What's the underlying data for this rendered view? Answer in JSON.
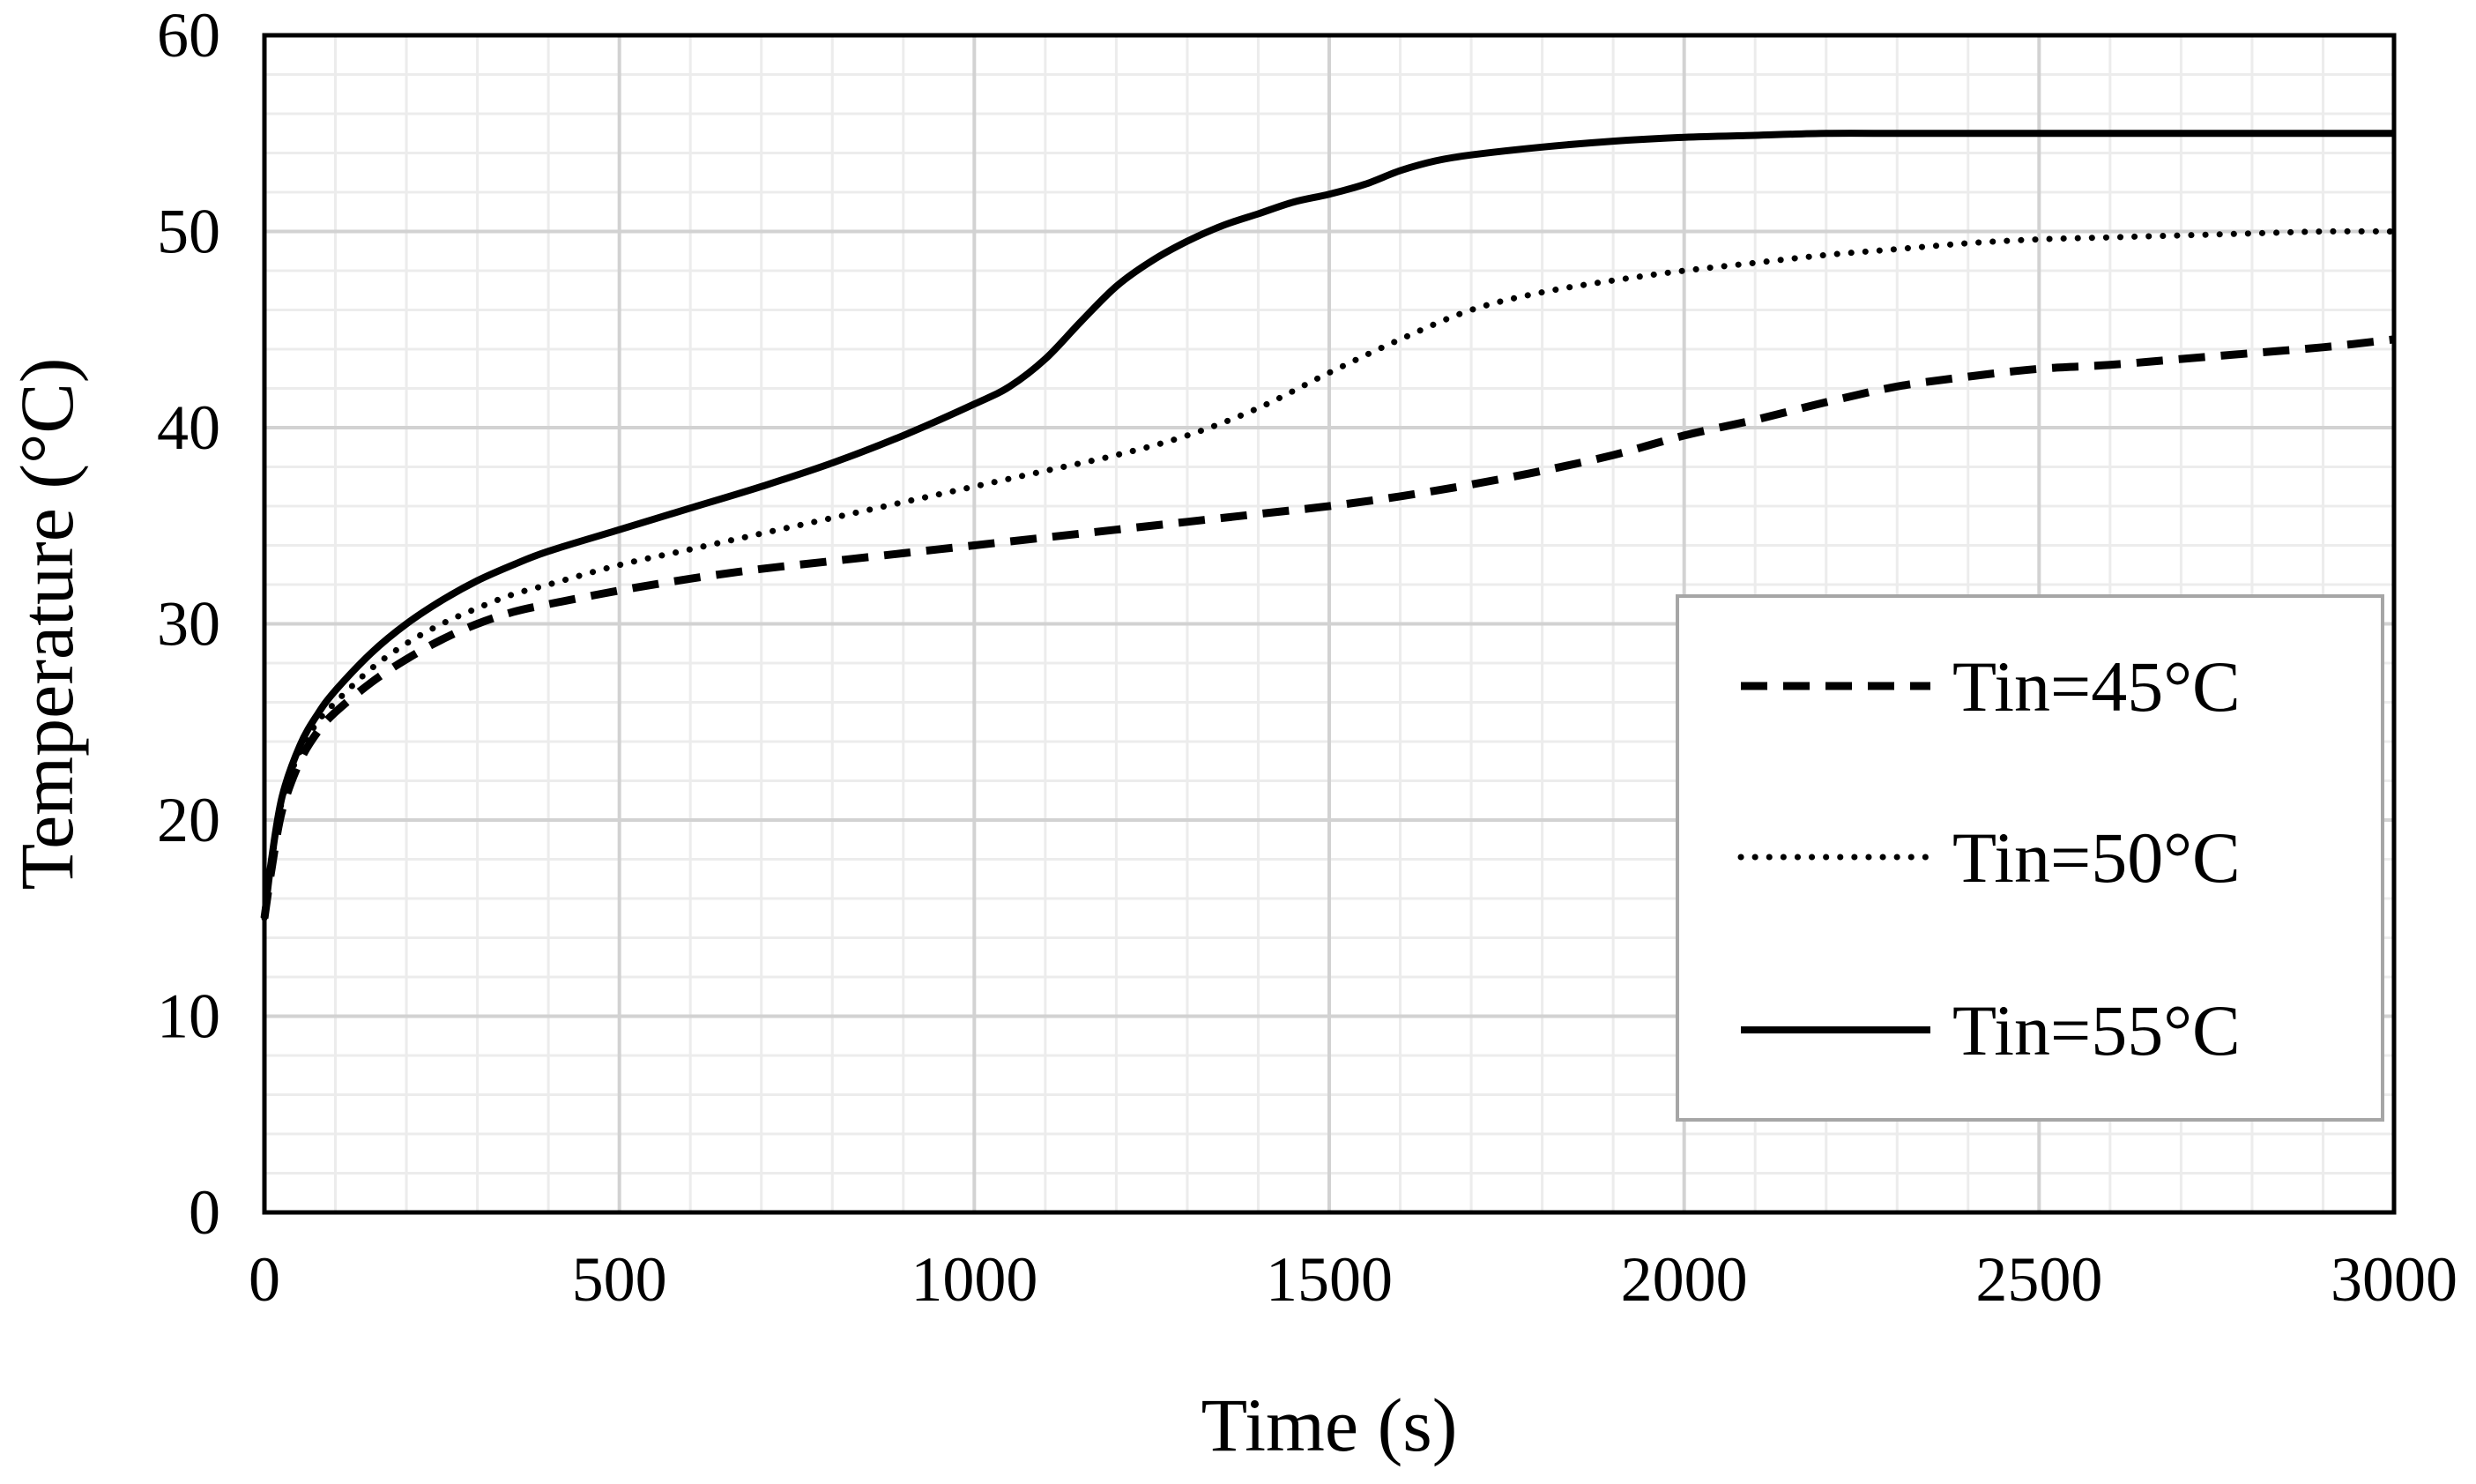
{
  "chart_data": {
    "type": "line",
    "title": "",
    "xlabel": "Time (s)",
    "ylabel": "Temperature (°C)",
    "xlim": [
      0,
      3000
    ],
    "ylim": [
      0,
      60
    ],
    "x_ticks": [
      0,
      500,
      1000,
      1500,
      2000,
      2500,
      3000
    ],
    "y_ticks": [
      0,
      10,
      20,
      30,
      40,
      50,
      60
    ],
    "x_minor_step": 100,
    "y_minor_step": 2,
    "grid": true,
    "legend_position": "right",
    "series": [
      {
        "name": "Tin=45°C",
        "style": "dashed",
        "x": [
          0,
          10,
          25,
          50,
          75,
          100,
          150,
          200,
          250,
          300,
          350,
          400,
          500,
          600,
          700,
          800,
          900,
          1000,
          1100,
          1200,
          1300,
          1400,
          1500,
          1600,
          1700,
          1800,
          1900,
          2000,
          2100,
          2200,
          2300,
          2400,
          2500,
          2600,
          2700,
          2800,
          2900,
          3000
        ],
        "y": [
          15,
          17.5,
          20.5,
          23,
          24.5,
          25.5,
          27,
          28.2,
          29.2,
          30,
          30.6,
          31,
          31.7,
          32.3,
          32.8,
          33.2,
          33.6,
          34,
          34.4,
          34.8,
          35.2,
          35.6,
          36,
          36.5,
          37.1,
          37.8,
          38.6,
          39.6,
          40.4,
          41.3,
          42.1,
          42.6,
          43,
          43.2,
          43.5,
          43.8,
          44.1,
          44.5
        ]
      },
      {
        "name": "Tin=50°C",
        "style": "dotted",
        "x": [
          0,
          10,
          25,
          50,
          75,
          100,
          150,
          200,
          250,
          300,
          350,
          400,
          500,
          600,
          700,
          800,
          900,
          1000,
          1100,
          1200,
          1300,
          1400,
          1500,
          1600,
          1700,
          1800,
          1900,
          2000,
          2100,
          2200,
          2300,
          2400,
          2500,
          2600,
          2700,
          2800,
          2900,
          3000
        ],
        "y": [
          15,
          17.8,
          21,
          23.5,
          25,
          26,
          27.7,
          29,
          30,
          30.8,
          31.5,
          32,
          33,
          33.8,
          34.6,
          35.4,
          36.2,
          37,
          37.8,
          38.6,
          39.6,
          41,
          42.8,
          44.5,
          46,
          46.9,
          47.5,
          48,
          48.4,
          48.8,
          49.1,
          49.4,
          49.6,
          49.7,
          49.8,
          49.9,
          50,
          50
        ]
      },
      {
        "name": "Tin=55°C",
        "style": "solid",
        "x": [
          0,
          10,
          25,
          50,
          75,
          100,
          150,
          200,
          250,
          300,
          350,
          400,
          500,
          600,
          700,
          800,
          900,
          1000,
          1050,
          1100,
          1150,
          1200,
          1250,
          1300,
          1350,
          1400,
          1450,
          1500,
          1550,
          1600,
          1650,
          1700,
          1800,
          1900,
          2000,
          2100,
          2200,
          2300,
          2400,
          2500,
          2600,
          2700,
          2800,
          2900,
          3000
        ],
        "y": [
          15,
          18,
          21.2,
          23.8,
          25.4,
          26.6,
          28.5,
          30,
          31.2,
          32.2,
          33,
          33.7,
          34.8,
          35.9,
          37,
          38.2,
          39.6,
          41.2,
          42.1,
          43.5,
          45.4,
          47.2,
          48.5,
          49.5,
          50.3,
          50.9,
          51.5,
          51.9,
          52.4,
          53.1,
          53.6,
          53.9,
          54.3,
          54.6,
          54.8,
          54.9,
          55,
          55,
          55,
          55,
          55,
          55,
          55,
          55,
          55
        ]
      }
    ]
  }
}
